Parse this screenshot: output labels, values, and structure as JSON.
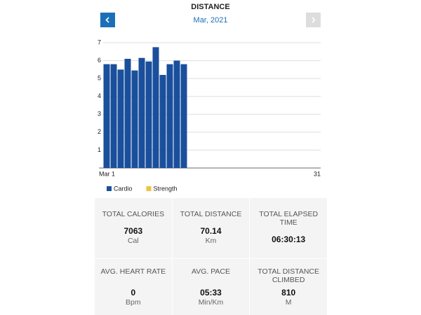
{
  "header": {
    "title": "DISTANCE",
    "subtitle": "Mar, 2021"
  },
  "chart_data": {
    "type": "bar",
    "categories": [
      "Mar 1",
      null,
      null,
      null,
      null,
      null,
      null,
      null,
      null,
      null,
      null,
      null,
      null,
      null,
      null,
      null,
      null,
      null,
      null,
      null,
      null,
      null,
      null,
      null,
      null,
      null,
      null,
      null,
      null,
      null,
      "31"
    ],
    "series": [
      {
        "name": "Cardio",
        "color": "#1a4f9c",
        "values": [
          5.8,
          5.8,
          5.5,
          6.1,
          5.45,
          6.15,
          5.95,
          6.75,
          5.2,
          5.8,
          6.0,
          5.8,
          null,
          null,
          null,
          null,
          null,
          null,
          null,
          null,
          null,
          null,
          null,
          null,
          null,
          null,
          null,
          null,
          null,
          null,
          null
        ]
      },
      {
        "name": "Strength",
        "color": "#f0c23c",
        "values": [
          0,
          0,
          0,
          0,
          0,
          0,
          0,
          0,
          0,
          0,
          0,
          0,
          null,
          null,
          null,
          null,
          null,
          null,
          null,
          null,
          null,
          null,
          null,
          null,
          null,
          null,
          null,
          null,
          null,
          null,
          null
        ]
      }
    ],
    "ylim": [
      0,
      7
    ],
    "yticks": [
      1,
      2,
      3,
      4,
      5,
      6,
      7
    ],
    "grid": true,
    "stacked": true,
    "legend": "bottom-left"
  },
  "stats": [
    {
      "label": "TOTAL CALORIES",
      "value": "7063",
      "unit": "Cal"
    },
    {
      "label": "TOTAL DISTANCE",
      "value": "70.14",
      "unit": "Km"
    },
    {
      "label": "TOTAL ELAPSED TIME",
      "value": "06:30:13"
    },
    {
      "label": "AVG. HEART RATE",
      "value": "0",
      "unit": "Bpm"
    },
    {
      "label": "AVG. PACE",
      "value": "05:33",
      "unit": "Min/Km"
    },
    {
      "label": "TOTAL DISTANCE CLIMBED",
      "value": "810",
      "unit": "M"
    }
  ]
}
